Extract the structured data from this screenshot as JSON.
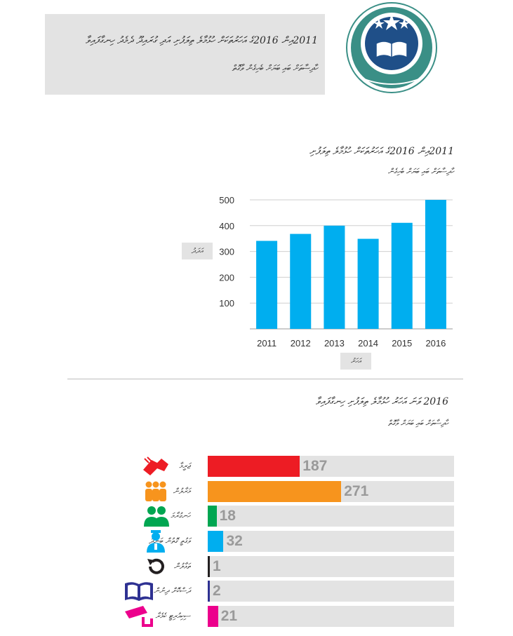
{
  "header": {
    "title_line1": "2011އިން 2016ގެ އަހަރުތަކަށް ހުޅުމާލެ ތިލަފުށި އަދި ގުރައިދޫ ދެމެދު ހިނގާފައިވާ",
    "title_line2": "ހާދިސާތަށް ބައި ބަޔަށް ބެހިގެން ވާގޮތް"
  },
  "logo": {
    "name": "police-emblem",
    "colors": {
      "ring": "#3a8f86",
      "inner": "#1f4f88",
      "star": "#ffffff"
    }
  },
  "chart1": {
    "title_line1": "2011އިން 2016ގެ އަހަރުތަކަށް ހުޅުމާލެ ތިލަފުށި",
    "title_line2": "ހާދިސާތަށް ބައި ބަޔަށް ބެހިގެން",
    "ylabel": "އަދަދު",
    "xlabel": "އަހަރު"
  },
  "chart2": {
    "title_line1": "2016 ވަނަ އަހަރު ހުޅުމާލެ ތިލަފުށި ހިނގާފައިވާ",
    "title_line2": "ހާދިސާތަށް ބައި ބަޔަށް ވާގޮތް"
  },
  "chart_data": [
    {
      "type": "bar",
      "categories": [
        "2011",
        "2012",
        "2013",
        "2014",
        "2015",
        "2016"
      ],
      "values": [
        341,
        368,
        400,
        349,
        411,
        500
      ],
      "ylim": [
        0,
        500
      ],
      "yticks": [
        100,
        200,
        300,
        400,
        500
      ],
      "grid": true,
      "color": "#00aeef"
    },
    {
      "type": "bar",
      "orientation": "horizontal",
      "categories": [
        {
          "label": "ޖަރީމާ",
          "icon": "fight-icon",
          "color": "#ed1c24"
        },
        {
          "label": "މަރާލުން",
          "icon": "crowd-icon",
          "color": "#f7941d"
        },
        {
          "label": "ހަނގުރާމަ",
          "icon": "group-icon",
          "color": "#00a651"
        },
        {
          "label": "ވަގުތީ ގޮތުން ބަންދު",
          "icon": "officer-icon",
          "color": "#00aeef"
        },
        {
          "label": "ތަޅާލުން",
          "icon": "refresh-icon",
          "color": "#231f20"
        },
        {
          "label": "ދަސްކޮށް ދިނުން",
          "icon": "book-icon",
          "color": "#2e3192"
        },
        {
          "label": "ސިކިއުރިޓީ ކެމެރާ",
          "icon": "camera-icon",
          "color": "#ec008c"
        }
      ],
      "values": [
        187,
        271,
        18,
        32,
        1,
        2,
        21
      ],
      "xlim": [
        0,
        500
      ]
    }
  ]
}
